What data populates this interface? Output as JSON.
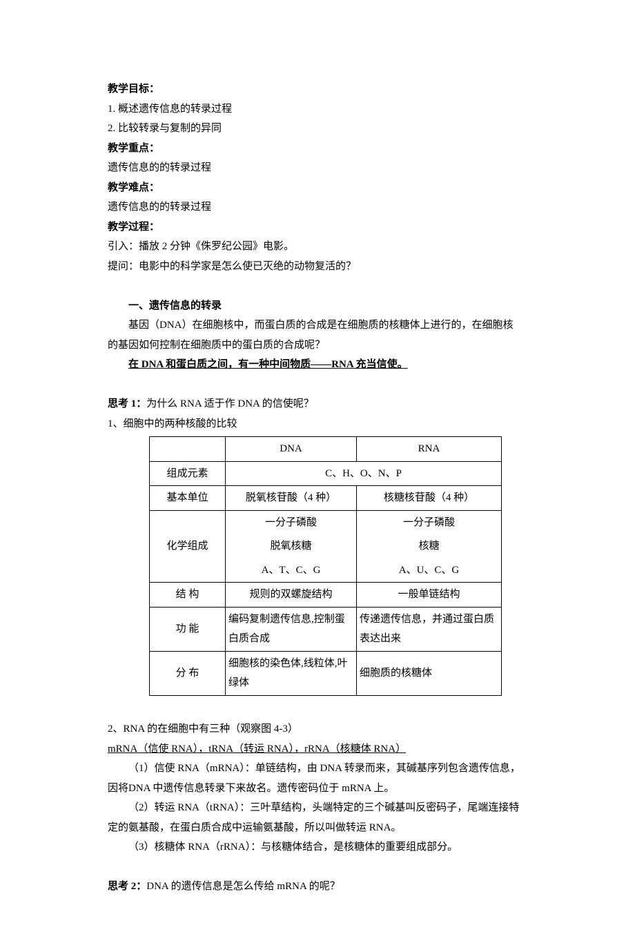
{
  "headings": {
    "goal": "教学目标：",
    "key": "教学重点：",
    "difficult": "教学难点：",
    "process": "教学过程："
  },
  "goals": {
    "g1": "1. 概述遗传信息的转录过程",
    "g2": "2. 比较转录与复制的异同"
  },
  "key_text": "遗传信息的的转录过程",
  "difficult_text": "遗传信息的的转录过程",
  "process_lines": {
    "l1": "引入：播放 2 分钟《侏罗纪公园》电影。",
    "l2": "提问：电影中的科学家是怎么使已灭绝的动物复活的？"
  },
  "section1_title": "一、遗传信息的转录",
  "section1_p1": "基因（DNA）在细胞核中，而蛋白质的合成是在细胞质的核糖体上进行的，在细胞核的基因如何控制在细胞质中的蛋白质的合成呢？",
  "section1_p1b": "的基因如何控制在细胞质中的蛋白质的合成呢？",
  "section1_p1a": "基因（DNA）在细胞核中，而蛋白质的合成是在细胞质的核糖体上进行的，在细胞核",
  "section1_bold_underline": "在 DNA 和蛋白质之间，有一种中间物质——RNA 充当信使。",
  "think1": {
    "label": "思考 1：",
    "text": "为什么 RNA 适于作 DNA 的信使呢？"
  },
  "compare_intro": "1、细胞中的两种核酸的比较",
  "table": {
    "col_widths": {
      "c1": "110px",
      "c2": "190px",
      "c3": "210px"
    },
    "header": {
      "blank": "",
      "dna": "DNA",
      "rna": "RNA"
    },
    "rows": {
      "elements": {
        "label": "组成元素",
        "value": "C、H、O、N、P"
      },
      "unit": {
        "label": "基本单位",
        "dna": "脱氧核苷酸（4 种）",
        "rna": "核糖核苷酸（4 种）"
      },
      "chem": {
        "label": "化学组成",
        "dna1": "一分子磷酸",
        "dna2": "脱氧核糖",
        "dna3": "A、T、C、G",
        "rna1": "一分子磷酸",
        "rna2": "核糖",
        "rna3": "A、U、C、G"
      },
      "structure": {
        "label": "结  构",
        "dna": "规则的双螺旋结构",
        "rna": "一般单链结构"
      },
      "function": {
        "label": "功  能",
        "dna": "编码复制遗传信息,控制蛋白质合成",
        "rna": "传递遗传信息，并通过蛋白质表达出来"
      },
      "distribution": {
        "label": "分  布",
        "dna": "细胞核的染色体,线粒体,叶绿体",
        "rna": "细胞质的核糖体"
      }
    }
  },
  "rna3_intro": "2、RNA 的在细胞中有三种（观察图 4-3）",
  "rna3_underline": "mRNA（信使 RNA），tRNA（转运 RNA），rRNA（核糖体 RNA）",
  "rna_desc": {
    "r1": "（1）信使 RNA（mRNA）：单链结构，由 DNA 转录而来，其碱基序列包含遗传信息，因将DNA 中遗传信息转录下来故名。遗传密码位于 mRNA 上。",
    "r2": "（2）转运 RNA（tRNA）：三叶草结构，头端特定的三个碱基叫反密码子，尾端连接特定的氨基酸，在蛋白质合成中运输氨基酸，所以叫做转运 RNA。",
    "r3": "（3）核糖体 RNA（rRNA）：与核糖体结合，是核糖体的重要组成部分。"
  },
  "think2": {
    "label": "思考 2：",
    "text": "DNA 的遗传信息是怎么传给 mRNA 的呢？"
  }
}
